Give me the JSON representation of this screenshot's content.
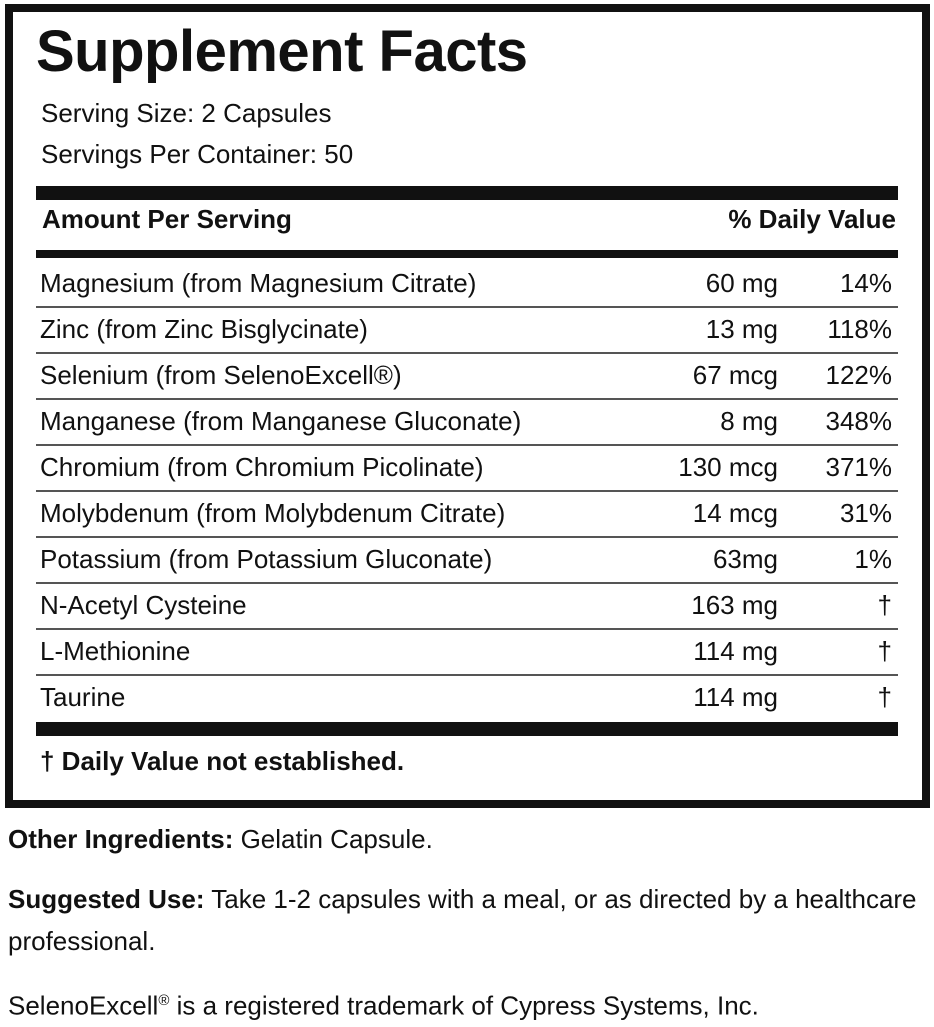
{
  "title": "Supplement Facts",
  "serving_size": "Serving Size: 2 Capsules",
  "servings_per_container": "Servings Per Container: 50",
  "header": {
    "amount": "Amount Per Serving",
    "dv": "% Daily Value"
  },
  "rows": [
    {
      "name": "Magnesium (from Magnesium Citrate)",
      "amount": "60 mg",
      "dv": "14%"
    },
    {
      "name": "Zinc (from Zinc Bisglycinate)",
      "amount": "13 mg",
      "dv": "118%"
    },
    {
      "name": "Selenium (from SelenoExcell®)",
      "amount": "67 mcg",
      "dv": "122%"
    },
    {
      "name": "Manganese (from Manganese Gluconate)",
      "amount": "8 mg",
      "dv": "348%"
    },
    {
      "name": "Chromium (from Chromium Picolinate)",
      "amount": "130 mcg",
      "dv": "371%"
    },
    {
      "name": "Molybdenum (from Molybdenum Citrate)",
      "amount": "14 mcg",
      "dv": "31%"
    },
    {
      "name": "Potassium (from Potassium Gluconate)",
      "amount": "63mg",
      "dv": "1%"
    },
    {
      "name": "N-Acetyl Cysteine",
      "amount": "163 mg",
      "dv": "†"
    },
    {
      "name": "L-Methionine",
      "amount": "114 mg",
      "dv": "†"
    },
    {
      "name": "Taurine",
      "amount": "114 mg",
      "dv": "†"
    }
  ],
  "footnote": "† Daily Value not established.",
  "other_ingredients": {
    "label": "Other Ingredients:",
    "text": " Gelatin Capsule."
  },
  "suggested_use": {
    "label": "Suggested Use:",
    "text": " Take 1-2 capsules with a meal, or as directed by a healthcare professional."
  },
  "trademark": {
    "brand": "SelenoExcell",
    "mark": "®",
    "text": " is a registered trademark of Cypress Systems, Inc."
  }
}
